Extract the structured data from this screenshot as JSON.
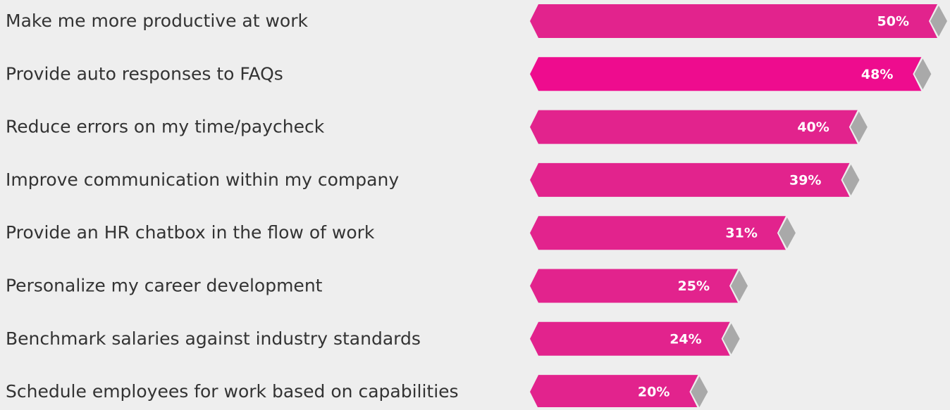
{
  "chart_data": {
    "type": "bar",
    "orientation": "horizontal",
    "categories": [
      "Make me more productive at work",
      "Provide auto responses to FAQs",
      "Reduce errors on my time/paycheck",
      "Improve communication within my company",
      "Provide an HR chatbox in the flow of work",
      "Personalize my career development",
      "Benchmark salaries against industry standards",
      "Schedule employees for work based on capabilities"
    ],
    "values": [
      50,
      48,
      40,
      39,
      31,
      25,
      24,
      20
    ],
    "value_labels": [
      "50%",
      "48%",
      "40%",
      "39%",
      "31%",
      "25%",
      "24%",
      "20%"
    ],
    "colors": [
      "#e2238d",
      "#ee0c8e",
      "#e2238d",
      "#e2238d",
      "#e2238d",
      "#e2238d",
      "#e2238d",
      "#e2238d"
    ]
  }
}
